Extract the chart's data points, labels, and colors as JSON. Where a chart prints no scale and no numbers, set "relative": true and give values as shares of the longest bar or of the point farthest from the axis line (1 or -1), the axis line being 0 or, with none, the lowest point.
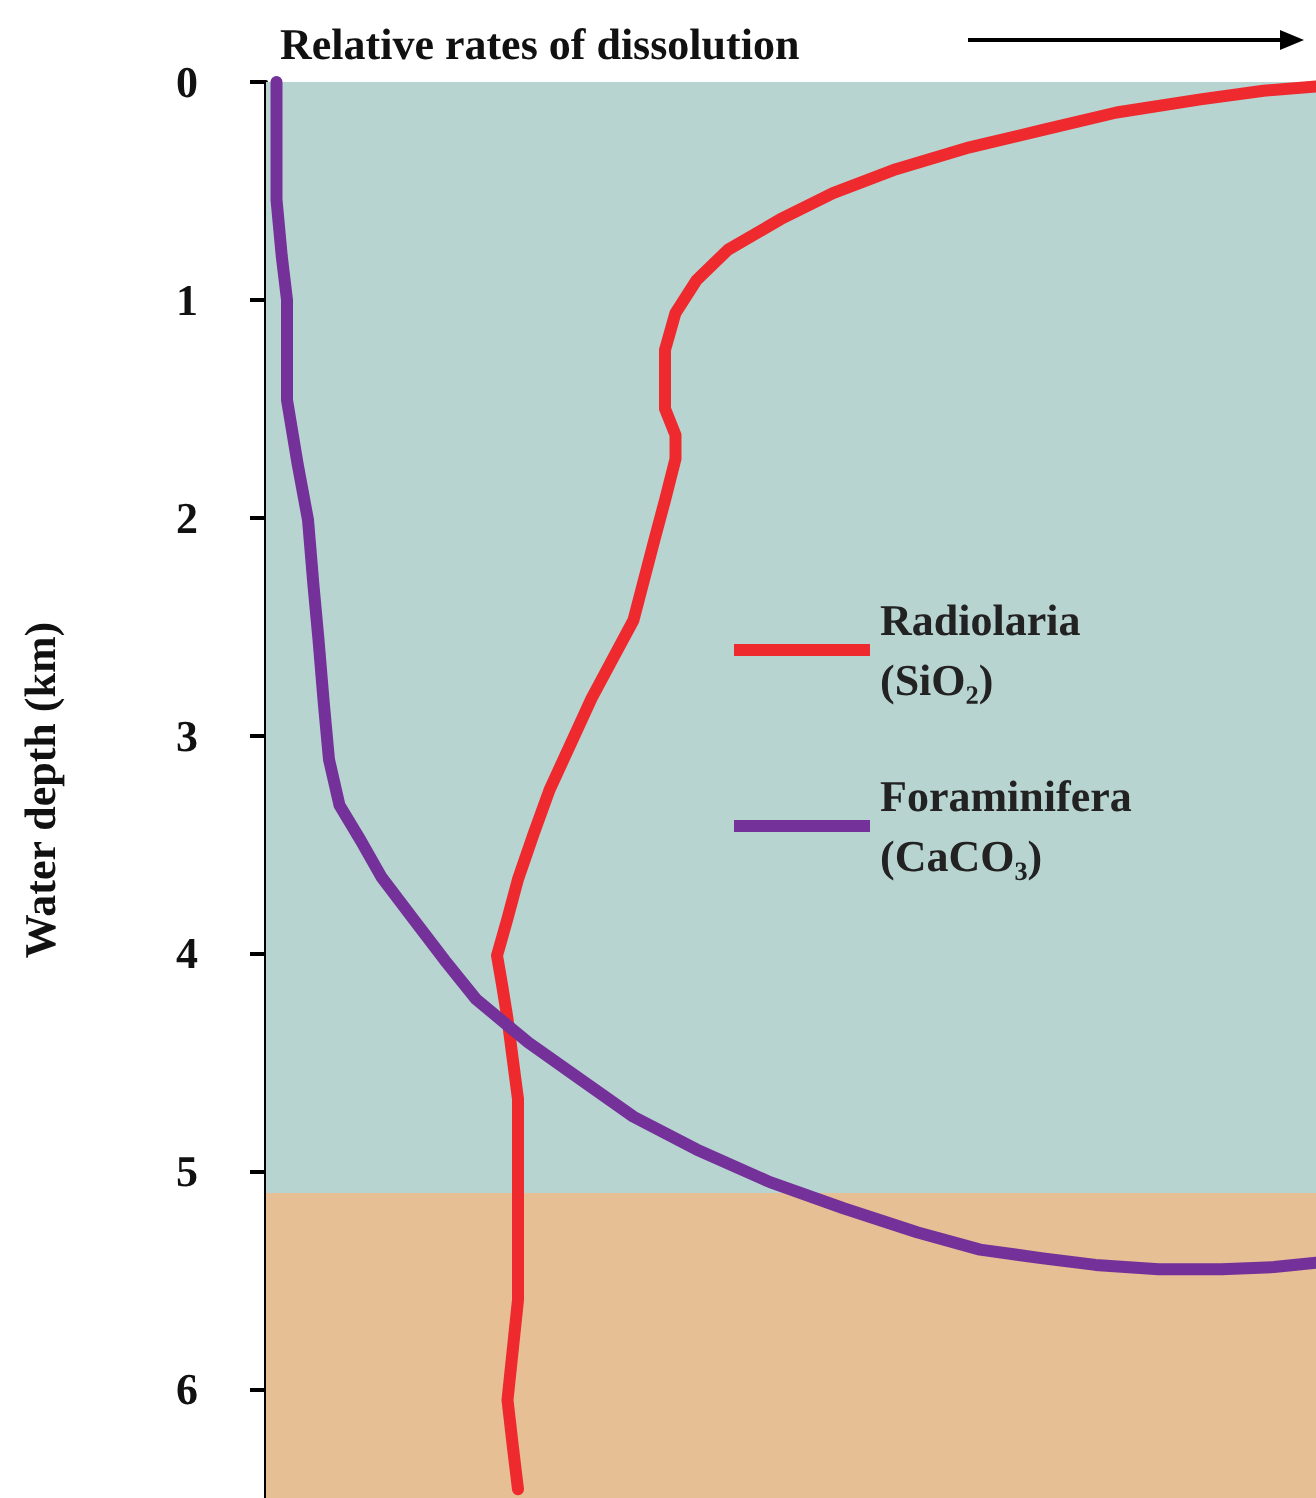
{
  "chart_data": {
    "type": "line",
    "orientation": "horizontal",
    "relative": true,
    "xlabel": "Relative rates of dissolution",
    "ylabel": "Water depth (km)",
    "ylim": [
      6.5,
      0
    ],
    "yticks": [
      0,
      1,
      2,
      3,
      4,
      5,
      6
    ],
    "legend": "right",
    "marker": "none",
    "line_style": "solid",
    "bands": [
      {
        "axis": "y",
        "from": 0,
        "to": 5.1,
        "color": "#b8d4d1"
      },
      {
        "axis": "y",
        "from": 5.1,
        "to": 6.5,
        "color": "#e6bf94"
      }
    ],
    "series": [
      {
        "name": "Radiolaria\n(SiO₂)",
        "color": "#ee2a2e",
        "values": [
          1.0,
          0.95,
          0.89,
          0.81,
          0.74,
          0.67,
          0.6,
          0.54,
          0.49,
          0.44,
          0.41,
          0.39,
          0.38,
          0.38,
          0.38,
          0.39,
          0.39,
          0.38,
          0.37,
          0.35,
          0.33,
          0.31,
          0.29,
          0.27,
          0.255,
          0.24,
          0.23,
          0.22,
          0.225,
          0.23,
          0.24,
          0.24,
          0.24,
          0.24,
          0.24,
          0.235,
          0.23,
          0.235,
          0.24
        ],
        "x": [
          0.02,
          0.04,
          0.08,
          0.14,
          0.22,
          0.3,
          0.4,
          0.51,
          0.63,
          0.77,
          0.91,
          1.06,
          1.23,
          1.37,
          1.5,
          1.62,
          1.73,
          1.92,
          2.1,
          2.47,
          2.65,
          2.83,
          3.04,
          3.25,
          3.45,
          3.66,
          3.84,
          4.01,
          4.15,
          4.3,
          4.67,
          4.9,
          5.13,
          5.36,
          5.59,
          5.82,
          6.05,
          6.26,
          6.46
        ]
      },
      {
        "name": "Foraminifera\n(CaCO₃)",
        "color": "#74319a",
        "values": [
          0.01,
          0.01,
          0.015,
          0.02,
          0.02,
          0.03,
          0.04,
          0.045,
          0.05,
          0.055,
          0.06,
          0.07,
          0.09,
          0.11,
          0.14,
          0.17,
          0.2,
          0.25,
          0.3,
          0.35,
          0.41,
          0.48,
          0.55,
          0.62,
          0.68,
          0.74,
          0.79,
          0.85,
          0.91,
          0.96,
          1.0
        ],
        "x": [
          0,
          0.54,
          0.8,
          1.0,
          1.46,
          1.75,
          2.01,
          2.3,
          2.56,
          2.85,
          3.11,
          3.32,
          3.48,
          3.65,
          3.84,
          4.03,
          4.21,
          4.41,
          4.58,
          4.75,
          4.9,
          5.05,
          5.17,
          5.28,
          5.36,
          5.4,
          5.43,
          5.45,
          5.45,
          5.44,
          5.42
        ]
      }
    ]
  }
}
